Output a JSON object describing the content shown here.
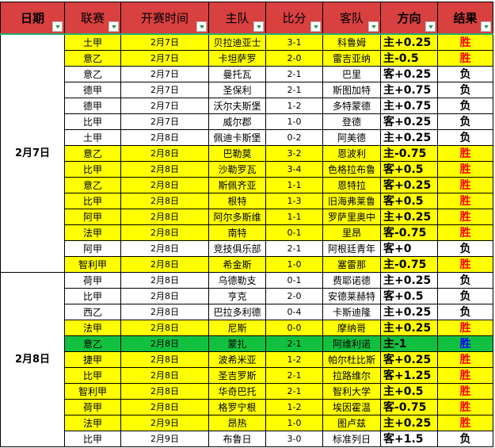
{
  "headers": [
    "日期",
    "联赛",
    "开赛时间",
    "主队",
    "比分",
    "客队",
    "方向",
    "结果"
  ],
  "colors": {
    "header": "#d94040",
    "highlight": "#ffff00",
    "special": "#12c040",
    "win": "#ff0000",
    "win_special": "#0000ff",
    "loss": "#000000"
  },
  "groups": [
    {
      "date": "2月7日",
      "rows": 15
    },
    {
      "date": "2月8日",
      "rows": 11
    }
  ],
  "rows": [
    {
      "league": "土甲",
      "time": "2月7日",
      "home": "贝拉迪亚士",
      "score": "3-1",
      "away": "科鲁姆",
      "dir": "主+0.25",
      "result": "胜",
      "hl": "y"
    },
    {
      "league": "意乙",
      "time": "2月7日",
      "home": "卡坦萨罗",
      "score": "2-0",
      "away": "雷吉亚纳",
      "dir": "主-0.5",
      "result": "胜",
      "hl": "y"
    },
    {
      "league": "意乙",
      "time": "2月7日",
      "home": "曼托瓦",
      "score": "2-1",
      "away": "巴里",
      "dir": "客+0.25",
      "result": "负",
      "hl": ""
    },
    {
      "league": "德甲",
      "time": "2月7日",
      "home": "圣保利",
      "score": "2-1",
      "away": "斯图加特",
      "dir": "主+0.75",
      "result": "负",
      "hl": ""
    },
    {
      "league": "德甲",
      "time": "2月7日",
      "home": "沃尔夫斯堡",
      "score": "1-2",
      "away": "多特蒙德",
      "dir": "主+0.75",
      "result": "负",
      "hl": ""
    },
    {
      "league": "比甲",
      "time": "2月7日",
      "home": "威尔郡",
      "score": "1-0",
      "away": "登德",
      "dir": "客+0.25",
      "result": "负",
      "hl": ""
    },
    {
      "league": "土甲",
      "time": "2月8日",
      "home": "佩迪卡斯堡",
      "score": "0-2",
      "away": "阿美德",
      "dir": "主+0.25",
      "result": "负",
      "hl": ""
    },
    {
      "league": "意乙",
      "time": "2月8日",
      "home": "巴勒莫",
      "score": "3-2",
      "away": "恩波利",
      "dir": "主-0.75",
      "result": "胜",
      "hl": "y"
    },
    {
      "league": "比甲",
      "time": "2月8日",
      "home": "沙勒罗瓦",
      "score": "3-4",
      "away": "色格拉布鲁",
      "dir": "客+0.5",
      "result": "胜",
      "hl": "y"
    },
    {
      "league": "意乙",
      "time": "2月8日",
      "home": "斯佩齐亚",
      "score": "1-1",
      "away": "恩特拉",
      "dir": "客+0.25",
      "result": "胜",
      "hl": "y"
    },
    {
      "league": "比甲",
      "time": "2月8日",
      "home": "根特",
      "score": "1-3",
      "away": "旧海弗莱鲁",
      "dir": "客+0.5",
      "result": "胜",
      "hl": "y"
    },
    {
      "league": "阿甲",
      "time": "2月8日",
      "home": "阿尔多斯维",
      "score": "1-1",
      "away": "罗萨里奥中",
      "dir": "主+0.25",
      "result": "胜",
      "hl": "y"
    },
    {
      "league": "法甲",
      "time": "2月8日",
      "home": "南特",
      "score": "0-1",
      "away": "里昂",
      "dir": "客-0.75",
      "result": "胜",
      "hl": "y"
    },
    {
      "league": "阿甲",
      "time": "2月8日",
      "home": "竞技俱乐部",
      "score": "2-1",
      "away": "阿根廷青年",
      "dir": "客+0",
      "result": "负",
      "hl": ""
    },
    {
      "league": "智利甲",
      "time": "2月8日",
      "home": "希金斯",
      "score": "1-0",
      "away": "塞雷那",
      "dir": "主-0.75",
      "result": "胜",
      "hl": "y"
    },
    {
      "league": "荷甲",
      "time": "2月8日",
      "home": "乌德勒支",
      "score": "0-1",
      "away": "费耶诺德",
      "dir": "主+0.25",
      "result": "负",
      "hl": ""
    },
    {
      "league": "比甲",
      "time": "2月8日",
      "home": "亨克",
      "score": "2-0",
      "away": "安德莱赫特",
      "dir": "客+0.5",
      "result": "负",
      "hl": ""
    },
    {
      "league": "西乙",
      "time": "2月8日",
      "home": "巴拉多利德",
      "score": "0-4",
      "away": "卡斯迪隆",
      "dir": "主+0.25",
      "result": "负",
      "hl": ""
    },
    {
      "league": "法甲",
      "time": "2月8日",
      "home": "尼斯",
      "score": "0-0",
      "away": "摩纳哥",
      "dir": "主+0.25",
      "result": "胜",
      "hl": "y"
    },
    {
      "league": "意乙",
      "time": "2月8日",
      "home": "蒙扎",
      "score": "2-1",
      "away": "阿维利诺",
      "dir": "主-1",
      "result": "胜",
      "hl": "g"
    },
    {
      "league": "捷甲",
      "time": "2月8日",
      "home": "波希米亚",
      "score": "1-2",
      "away": "帕尔杜比斯",
      "dir": "客+0.25",
      "result": "胜",
      "hl": "y"
    },
    {
      "league": "比甲",
      "time": "2月8日",
      "home": "圣吉罗斯",
      "score": "2-1",
      "away": "拉路维尔",
      "dir": "客+1.25",
      "result": "胜",
      "hl": "y"
    },
    {
      "league": "智利甲",
      "time": "2月8日",
      "home": "华奇巴托",
      "score": "2-1",
      "away": "智利大学",
      "dir": "主+0.5",
      "result": "胜",
      "hl": "y"
    },
    {
      "league": "荷甲",
      "time": "2月8日",
      "home": "格罗宁根",
      "score": "1-2",
      "away": "埃因霍温",
      "dir": "客-0.75",
      "result": "胜",
      "hl": "y"
    },
    {
      "league": "法甲",
      "time": "2月9日",
      "home": "昂热",
      "score": "1-0",
      "away": "图卢兹",
      "dir": "主+0.25",
      "result": "胜",
      "hl": "y"
    },
    {
      "league": "比甲",
      "time": "2月9日",
      "home": "布鲁日",
      "score": "3-0",
      "away": "标准列日",
      "dir": "客+1.5",
      "result": "负",
      "hl": ""
    }
  ]
}
